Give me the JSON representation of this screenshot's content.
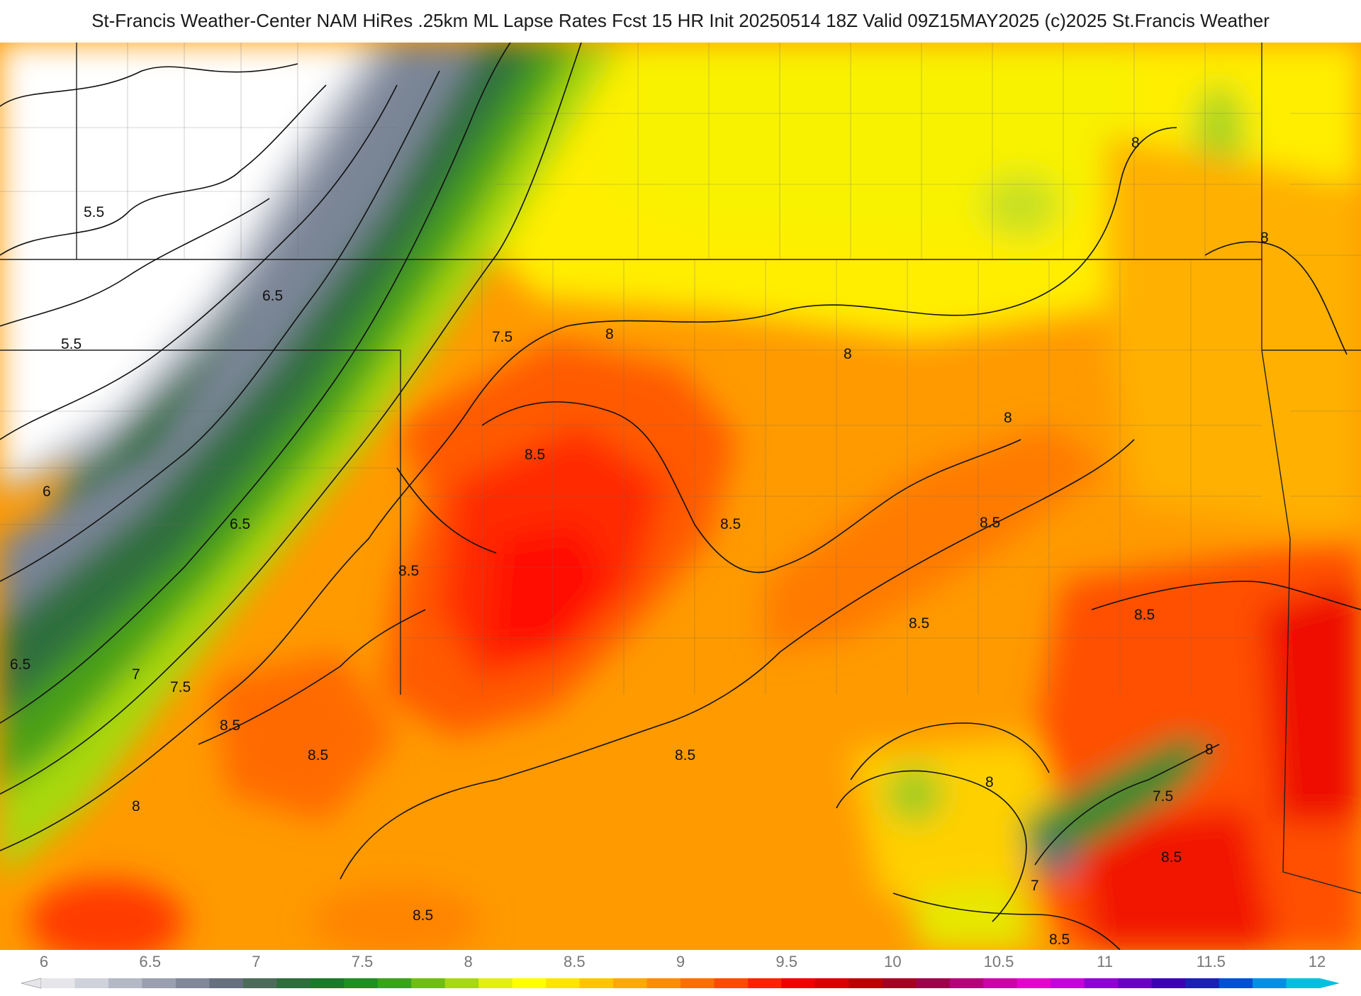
{
  "header": {
    "title": "St-Francis Weather-Center NAM HiRes .25km ML Lapse Rates  Fcst 15 HR Init 20250514 18Z  Valid 09Z15MAY2025    (c)2025 St.Francis Weather"
  },
  "colorbar": {
    "ticks": [
      "6",
      "6.5",
      "7",
      "7.5",
      "8",
      "8.5",
      "9",
      "9.5",
      "10",
      "10.5",
      "11",
      "11.5",
      "12"
    ],
    "colors": [
      "#e6e6ea",
      "#cfd2da",
      "#b4b9c6",
      "#9aa0b0",
      "#808899",
      "#66707f",
      "#4d6b5a",
      "#2e6e3c",
      "#1a7a2a",
      "#1f8f22",
      "#3aa318",
      "#6fbf10",
      "#a8d810",
      "#e2ef10",
      "#ffff00",
      "#ffe400",
      "#ffc400",
      "#ffa800",
      "#ff8c00",
      "#ff6e00",
      "#ff4a00",
      "#ff2200",
      "#ee0000",
      "#d80000",
      "#c00000",
      "#a80020",
      "#a0004a",
      "#b8007a",
      "#d000a8",
      "#e800d0",
      "#c800e0",
      "#9000d8",
      "#6a00c8",
      "#3c00b8",
      "#1a20b8",
      "#0050d8",
      "#0090e8",
      "#00c0e0"
    ]
  },
  "map": {
    "contour_labels": [
      "5.5",
      "5.5",
      "6",
      "6.5",
      "6.5",
      "6.5",
      "7",
      "7.5",
      "7.5",
      "8",
      "8",
      "8",
      "8",
      "8",
      "8",
      "8",
      "8.5",
      "8.5",
      "8.5",
      "8.5",
      "8.5",
      "8.5",
      "8.5",
      "8.5",
      "8.5",
      "8.5",
      "7.5",
      "8.5",
      "8",
      "7",
      "8.5"
    ]
  }
}
